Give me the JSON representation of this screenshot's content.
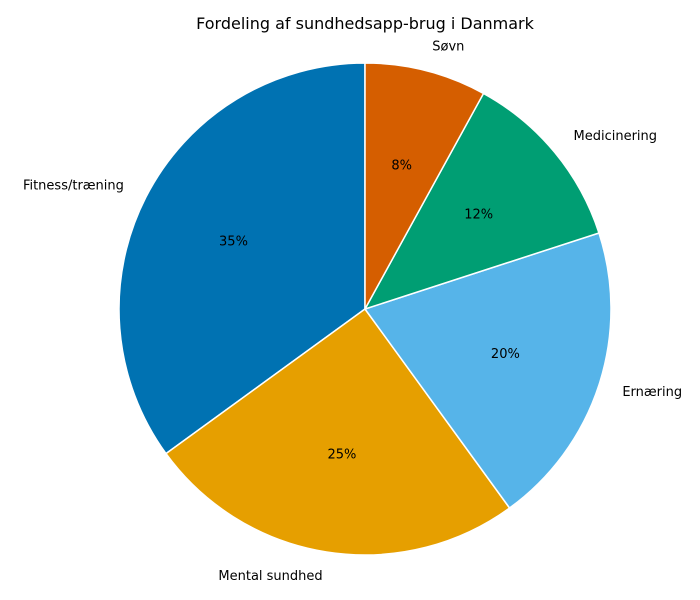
{
  "chart_data": {
    "type": "pie",
    "title": "Fordeling af sundhedsapp-brug i Danmark",
    "categories": [
      "Fitness/træning",
      "Mental sundhed",
      "Ernæring",
      "Medicinering",
      "Søvn"
    ],
    "values": [
      35,
      25,
      20,
      12,
      8
    ],
    "value_labels": [
      "35%",
      "25%",
      "20%",
      "12%",
      "8%"
    ],
    "colors": [
      "#0072b2",
      "#e69f00",
      "#56b4e9",
      "#009e73",
      "#d55e00"
    ],
    "start_angle_deg": 90,
    "direction": "counterclockwise",
    "slice_edge_color": "#ffffff",
    "legend": "none"
  }
}
